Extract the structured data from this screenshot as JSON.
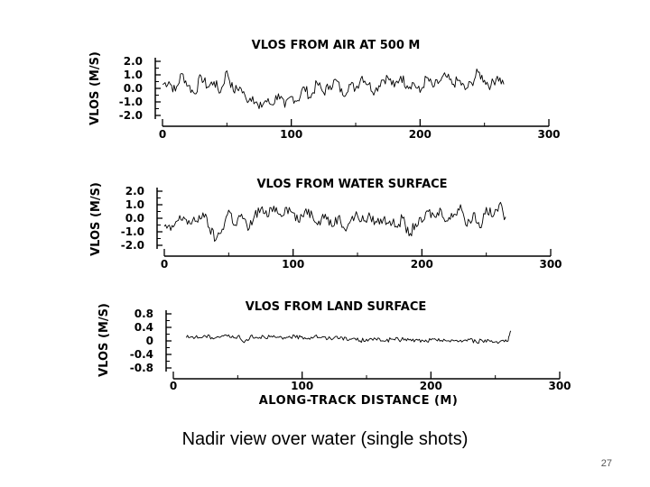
{
  "slide": {
    "caption": "Nadir view over water (single shots)",
    "number": "27"
  },
  "chart_data": [
    {
      "type": "line",
      "title": "VLOS FROM AIR AT 500 M",
      "ylabel": "VLOS (M/S)",
      "xlabel": "",
      "xlim": [
        0,
        300
      ],
      "ylim": [
        -2.0,
        2.0
      ],
      "x_ticks": [
        "0",
        "100",
        "200",
        "300"
      ],
      "y_ticks": [
        "2.0",
        "1.0",
        "0.0",
        "-1.0",
        "-2.0"
      ],
      "series": [
        {
          "x": [
            0,
            5,
            10,
            15,
            20,
            25,
            30,
            35,
            40,
            45,
            50,
            55,
            60,
            65,
            70,
            75,
            80,
            85,
            90,
            95,
            100,
            105,
            110,
            115,
            120,
            125,
            130,
            135,
            140,
            145,
            150,
            155,
            160,
            165,
            170,
            175,
            180,
            185,
            190,
            195,
            200,
            205,
            210,
            215,
            220,
            225,
            230,
            235,
            240,
            245,
            250,
            255,
            260,
            265
          ],
          "y": [
            0.3,
            0.5,
            -0.2,
            1.1,
            0.2,
            -0.4,
            0.9,
            0.1,
            0.5,
            -0.3,
            1.3,
            -0.2,
            0.1,
            -0.8,
            -0.6,
            -1.5,
            -0.9,
            -1.2,
            -0.4,
            -1.4,
            -0.6,
            -0.9,
            0.1,
            -0.7,
            0.4,
            -0.3,
            0.2,
            0.6,
            -0.5,
            0.3,
            0.0,
            0.9,
            0.3,
            -0.2,
            0.6,
            0.8,
            0.1,
            0.9,
            0.2,
            0.4,
            -0.3,
            0.8,
            0.1,
            0.5,
            0.9,
            0.3,
            0.6,
            -0.1,
            0.4,
            1.2,
            0.6,
            0.2,
            0.9,
            0.3
          ]
        }
      ]
    },
    {
      "type": "line",
      "title": "VLOS FROM WATER SURFACE",
      "ylabel": "VLOS (M/S)",
      "xlabel": "",
      "xlim": [
        0,
        300
      ],
      "ylim": [
        -2.0,
        2.0
      ],
      "x_ticks": [
        "0",
        "100",
        "200",
        "300"
      ],
      "y_ticks": [
        "2.0",
        "1.0",
        "0.0",
        "-1.0",
        "-2.0"
      ],
      "series": [
        {
          "x": [
            0,
            5,
            10,
            15,
            20,
            25,
            30,
            35,
            40,
            45,
            50,
            55,
            60,
            65,
            70,
            75,
            80,
            85,
            90,
            95,
            100,
            105,
            110,
            115,
            120,
            125,
            130,
            135,
            140,
            145,
            150,
            155,
            160,
            165,
            170,
            175,
            180,
            185,
            190,
            195,
            200,
            205,
            210,
            215,
            220,
            225,
            230,
            235,
            240,
            245,
            250,
            255,
            260,
            265
          ],
          "y": [
            -0.6,
            -0.9,
            -0.2,
            0.1,
            -0.4,
            -0.2,
            0.4,
            -0.7,
            -1.6,
            -0.8,
            0.6,
            -0.5,
            0.3,
            -0.9,
            0.2,
            0.7,
            0.1,
            0.9,
            0.3,
            0.8,
            0.4,
            -0.3,
            0.7,
            0.2,
            -0.2,
            0.3,
            -0.6,
            0.1,
            -0.8,
            -0.1,
            0.2,
            -0.2,
            0.1,
            -0.3,
            -0.1,
            -0.2,
            -0.6,
            0.0,
            -1.3,
            -0.4,
            -0.3,
            0.5,
            0.1,
            0.6,
            -0.2,
            0.3,
            1.0,
            -0.6,
            0.4,
            -0.7,
            0.8,
            0.1,
            1.0,
            0.1
          ]
        }
      ]
    },
    {
      "type": "line",
      "title": "VLOS FROM LAND SURFACE",
      "ylabel": "VLOS (M/S)",
      "xlabel": "ALONG-TRACK DISTANCE (M)",
      "xlim": [
        0,
        300
      ],
      "ylim": [
        -0.8,
        0.8
      ],
      "x_ticks": [
        "0",
        "100",
        "200",
        "300"
      ],
      "y_ticks": [
        "0.8",
        "0.4",
        "0",
        "-0.4",
        "-0.8"
      ],
      "series": [
        {
          "x": [
            10,
            15,
            20,
            25,
            30,
            35,
            40,
            45,
            50,
            55,
            60,
            65,
            70,
            75,
            80,
            85,
            90,
            95,
            100,
            105,
            110,
            115,
            120,
            125,
            130,
            135,
            140,
            145,
            150,
            155,
            160,
            165,
            170,
            175,
            180,
            185,
            190,
            195,
            200,
            205,
            210,
            215,
            220,
            225,
            230,
            235,
            240,
            245,
            250,
            255,
            260,
            262
          ],
          "y": [
            0.1,
            0.12,
            0.1,
            0.14,
            0.1,
            0.12,
            0.18,
            0.1,
            0.14,
            -0.05,
            0.15,
            0.1,
            0.14,
            0.12,
            0.1,
            0.05,
            0.14,
            0.1,
            0.12,
            0.08,
            0.15,
            0.1,
            0.06,
            0.1,
            0.12,
            0.02,
            0.08,
            0.0,
            0.05,
            0.02,
            0.07,
            0.0,
            0.05,
            0.03,
            0.06,
            0.0,
            0.02,
            -0.02,
            0.03,
            0.0,
            0.05,
            -0.03,
            0.02,
            0.0,
            0.04,
            -0.02,
            0.0,
            0.02,
            -0.03,
            0.01,
            0.0,
            0.3
          ]
        }
      ]
    }
  ]
}
